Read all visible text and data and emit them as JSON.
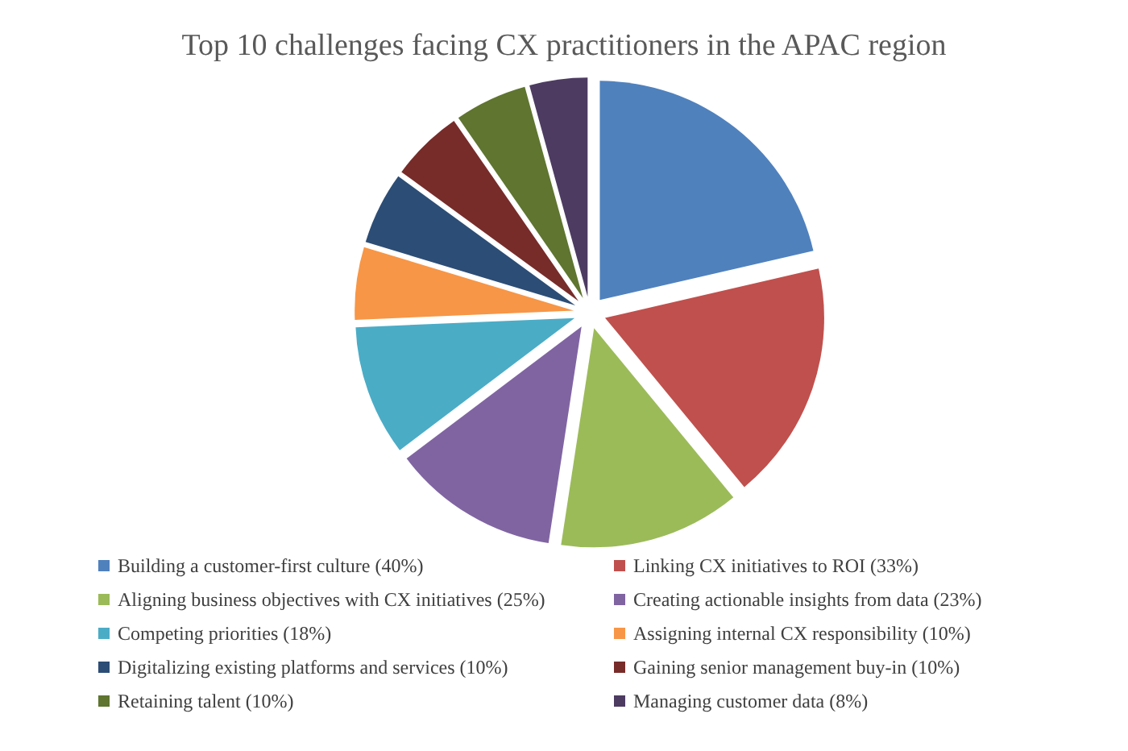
{
  "chart_data": {
    "type": "pie",
    "title": "Top 10 challenges facing CX practitioners in the APAC region",
    "categories": [
      "Building a customer-first culture (40%)",
      "Linking CX initiatives to ROI (33%)",
      "Aligning business objectives with CX initiatives (25%)",
      "Creating actionable insights from data (23%)",
      "Competing priorities (18%)",
      "Assigning internal CX responsibility (10%)",
      "Digitalizing existing platforms and services (10%)",
      "Gaining senior management buy-in (10%)",
      "Retaining talent (10%)",
      "Managing customer data (8%)"
    ],
    "values": [
      40,
      33,
      25,
      23,
      18,
      10,
      10,
      10,
      10,
      8
    ],
    "colors": [
      "#4f81bd",
      "#c0504d",
      "#9bbb59",
      "#8064a2",
      "#4bacc6",
      "#f79646",
      "#2c4d75",
      "#772c2a",
      "#5f7530",
      "#4d3b62"
    ],
    "legend": "bottom"
  }
}
